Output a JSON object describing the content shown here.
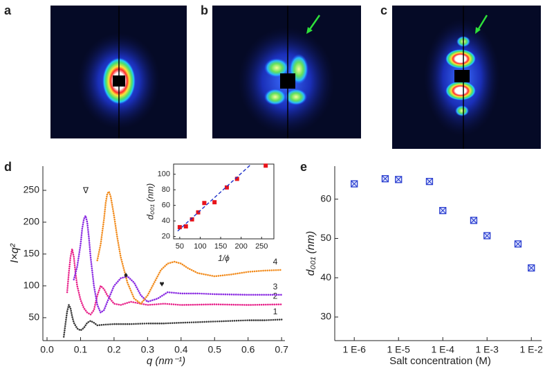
{
  "images": [
    {
      "panel": "a"
    },
    {
      "panel": "b"
    },
    {
      "panel": "c"
    }
  ],
  "chart_data": [
    {
      "type": "line",
      "panel": "d",
      "xlabel": "q (nm⁻¹)",
      "ylabel": "I×q²",
      "xlim": [
        0,
        0.71
      ],
      "xticks": [
        {
          "value": 0,
          "label": "0.0"
        },
        0.1,
        0.2,
        0.3,
        0.4,
        0.5,
        0.6,
        0.7
      ],
      "ylim": [
        14,
        288
      ],
      "yticks": [
        50,
        100,
        150,
        200,
        250
      ],
      "annotations": [
        "∇",
        "♦",
        "♥"
      ],
      "series": [
        {
          "name": "1",
          "color": "#3a3a3a",
          "x": [
            0.05,
            0.055,
            0.06,
            0.065,
            0.07,
            0.075,
            0.08,
            0.09,
            0.1,
            0.11,
            0.12,
            0.13,
            0.14,
            0.15,
            0.17,
            0.2,
            0.25,
            0.3,
            0.35,
            0.4,
            0.45,
            0.5,
            0.55,
            0.6,
            0.65,
            0.7
          ],
          "values": [
            20,
            40,
            60,
            70,
            65,
            52,
            42,
            33,
            30,
            34,
            42,
            45,
            42,
            38,
            39,
            40,
            40,
            41,
            41,
            42,
            43,
            44,
            45,
            46,
            46,
            47
          ]
        },
        {
          "name": "2",
          "color": "#e8238a",
          "x": [
            0.06,
            0.065,
            0.07,
            0.075,
            0.08,
            0.085,
            0.09,
            0.1,
            0.11,
            0.12,
            0.13,
            0.14,
            0.15,
            0.16,
            0.17,
            0.18,
            0.2,
            0.22,
            0.25,
            0.3,
            0.35,
            0.4,
            0.5,
            0.6,
            0.7
          ],
          "values": [
            90,
            120,
            145,
            158,
            145,
            120,
            100,
            78,
            65,
            58,
            55,
            62,
            85,
            100,
            95,
            85,
            72,
            70,
            75,
            70,
            72,
            70,
            71,
            70,
            71
          ]
        },
        {
          "name": "3",
          "color": "#8a2be2",
          "x": [
            0.08,
            0.09,
            0.1,
            0.105,
            0.11,
            0.115,
            0.12,
            0.125,
            0.13,
            0.14,
            0.15,
            0.16,
            0.17,
            0.18,
            0.2,
            0.22,
            0.24,
            0.26,
            0.28,
            0.3,
            0.33,
            0.36,
            0.4,
            0.45,
            0.5,
            0.6,
            0.7
          ],
          "values": [
            110,
            130,
            165,
            190,
            205,
            210,
            200,
            175,
            145,
            100,
            70,
            58,
            62,
            75,
            100,
            112,
            115,
            105,
            85,
            75,
            80,
            90,
            88,
            88,
            87,
            86,
            86
          ]
        },
        {
          "name": "4",
          "color": "#f28c1e",
          "x": [
            0.15,
            0.16,
            0.17,
            0.175,
            0.18,
            0.185,
            0.19,
            0.2,
            0.21,
            0.22,
            0.24,
            0.26,
            0.28,
            0.3,
            0.32,
            0.34,
            0.36,
            0.38,
            0.4,
            0.42,
            0.45,
            0.5,
            0.55,
            0.6,
            0.65,
            0.7
          ],
          "values": [
            140,
            165,
            205,
            230,
            245,
            248,
            240,
            210,
            175,
            145,
            105,
            80,
            72,
            85,
            105,
            125,
            135,
            138,
            135,
            128,
            120,
            115,
            118,
            122,
            124,
            125
          ]
        }
      ]
    },
    {
      "type": "scatter",
      "xlabel": "1/ϕ",
      "ylabel": "d₀₀₁ (nm)",
      "xlim": [
        35,
        280
      ],
      "xticks": [
        50,
        100,
        150,
        200,
        250
      ],
      "ylim": [
        17,
        113
      ],
      "yticks": [
        20,
        40,
        60,
        80,
        100
      ],
      "series": [
        {
          "color": "#e8141b",
          "x": [
            50,
            65,
            80,
            95,
            110,
            135,
            165,
            190,
            260
          ],
          "values": [
            32,
            33,
            42,
            51,
            63,
            64,
            83,
            94,
            111
          ]
        },
        {
          "color": "#1c2fc9",
          "style": "dashed",
          "x": [
            45,
            225
          ],
          "values": [
            27,
            113
          ]
        }
      ]
    },
    {
      "type": "scatter",
      "panel": "e",
      "xlabel": "Salt concentration (M)",
      "ylabel": "d₀₀₁ (nm)",
      "xscale": "log",
      "xlim": [
        4.5e-07,
        0.017
      ],
      "xticks": [
        {
          "value": 1e-06,
          "label": "1 E-6"
        },
        {
          "value": 1e-05,
          "label": "1 E-5"
        },
        {
          "value": 0.0001,
          "label": "1 E-4"
        },
        {
          "value": 0.001,
          "label": "1 E-3"
        },
        {
          "value": 0.01,
          "label": "1 E-2"
        }
      ],
      "ylim": [
        24,
        68.4
      ],
      "yticks": [
        30,
        40,
        50,
        60
      ],
      "series": [
        {
          "color": "#2b3fcf",
          "marker": "boxed-x",
          "x": [
            1e-06,
            5e-06,
            1e-05,
            5e-05,
            0.0001,
            0.0005,
            0.001,
            0.005,
            0.01
          ],
          "values": [
            63.9,
            65.2,
            65,
            64.5,
            57.1,
            54.6,
            50.7,
            48.6,
            42.5
          ]
        }
      ]
    }
  ]
}
